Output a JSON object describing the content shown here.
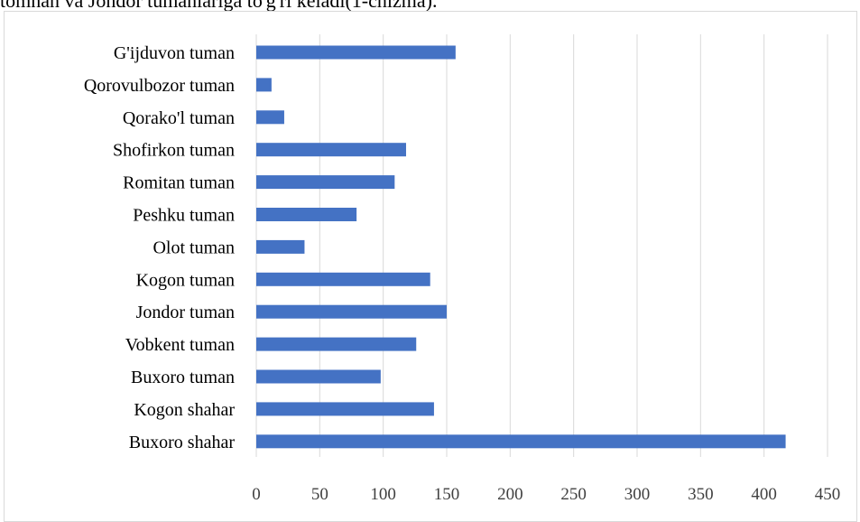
{
  "caption": "tomnan va Jondor tumanlariga to'g'ri keladi(1-chizma).",
  "chart_data": {
    "type": "bar",
    "orientation": "horizontal",
    "categories": [
      "G'ijduvon tuman",
      "Qorovulbozor tuman",
      "Qorako'l tuman",
      "Shofirkon tuman",
      "Romitan tuman",
      "Peshku tuman",
      "Olot tuman",
      "Kogon tuman",
      "Jondor tuman",
      "Vobkent tuman",
      "Buxoro tuman",
      "Kogon shahar",
      "Buxoro shahar"
    ],
    "values": [
      157,
      12,
      22,
      118,
      109,
      79,
      38,
      137,
      150,
      126,
      98,
      140,
      417
    ],
    "xlim": [
      0,
      450
    ],
    "xticks": [
      0,
      50,
      100,
      150,
      200,
      250,
      300,
      350,
      400,
      450
    ],
    "grid": true,
    "bar_color": "#4472c4",
    "grid_color": "#d9d9d9"
  }
}
